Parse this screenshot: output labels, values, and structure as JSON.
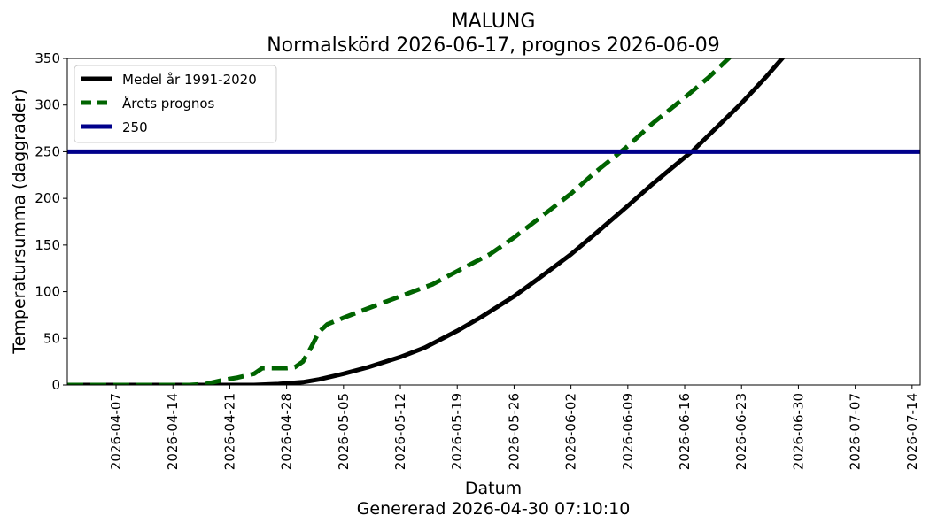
{
  "chart_data": {
    "type": "line",
    "title": "MALUNG",
    "subtitle": "Normalskörd 2026-06-17, prognos 2026-06-09",
    "xlabel": "Datum",
    "footer": "Genererad 2026-04-30 07:10:10",
    "ylabel": "Temperatursumma (daggrader)",
    "xlim": [
      "2026-04-01",
      "2026-07-15"
    ],
    "ylim": [
      0,
      350
    ],
    "yticks": [
      0,
      50,
      100,
      150,
      200,
      250,
      300,
      350
    ],
    "xticks": [
      "2026-04-07",
      "2026-04-14",
      "2026-04-21",
      "2026-04-28",
      "2026-05-05",
      "2026-05-12",
      "2026-05-19",
      "2026-05-26",
      "2026-06-02",
      "2026-06-09",
      "2026-06-16",
      "2026-06-23",
      "2026-06-30",
      "2026-07-07",
      "2026-07-14"
    ],
    "grid": false,
    "legend_position": "top-left",
    "series": [
      {
        "name": "Medel år 1991-2020",
        "color": "#000000",
        "style": "solid",
        "points": [
          [
            "2026-04-01",
            0
          ],
          [
            "2026-04-20",
            0
          ],
          [
            "2026-04-24",
            0
          ],
          [
            "2026-04-27",
            1
          ],
          [
            "2026-04-30",
            3
          ],
          [
            "2026-05-02",
            6
          ],
          [
            "2026-05-05",
            12
          ],
          [
            "2026-05-08",
            19
          ],
          [
            "2026-05-12",
            30
          ],
          [
            "2026-05-15",
            40
          ],
          [
            "2026-05-19",
            58
          ],
          [
            "2026-05-22",
            73
          ],
          [
            "2026-05-26",
            95
          ],
          [
            "2026-05-29",
            114
          ],
          [
            "2026-06-02",
            140
          ],
          [
            "2026-06-05",
            162
          ],
          [
            "2026-06-09",
            192
          ],
          [
            "2026-06-12",
            215
          ],
          [
            "2026-06-16",
            244
          ],
          [
            "2026-06-17",
            251
          ],
          [
            "2026-06-19",
            268
          ],
          [
            "2026-06-23",
            302
          ],
          [
            "2026-06-26",
            330
          ],
          [
            "2026-06-28",
            350
          ],
          [
            "2026-06-29",
            360
          ]
        ]
      },
      {
        "name": "Årets prognos",
        "color": "#006400",
        "style": "dashed",
        "points": [
          [
            "2026-04-01",
            0
          ],
          [
            "2026-04-16",
            0
          ],
          [
            "2026-04-18",
            1
          ],
          [
            "2026-04-20",
            5
          ],
          [
            "2026-04-22",
            8
          ],
          [
            "2026-04-24",
            12
          ],
          [
            "2026-04-25",
            18
          ],
          [
            "2026-04-28",
            18
          ],
          [
            "2026-04-29",
            19
          ],
          [
            "2026-04-30",
            25
          ],
          [
            "2026-05-01",
            40
          ],
          [
            "2026-05-02",
            57
          ],
          [
            "2026-05-03",
            65
          ],
          [
            "2026-05-05",
            72
          ],
          [
            "2026-05-08",
            82
          ],
          [
            "2026-05-12",
            95
          ],
          [
            "2026-05-16",
            108
          ],
          [
            "2026-05-19",
            122
          ],
          [
            "2026-05-23",
            140
          ],
          [
            "2026-05-26",
            158
          ],
          [
            "2026-05-29",
            178
          ],
          [
            "2026-06-02",
            205
          ],
          [
            "2026-06-05",
            228
          ],
          [
            "2026-06-09",
            256
          ],
          [
            "2026-06-12",
            280
          ],
          [
            "2026-06-16",
            308
          ],
          [
            "2026-06-19",
            330
          ],
          [
            "2026-06-22",
            355
          ]
        ]
      },
      {
        "name": "250",
        "color": "#00008b",
        "style": "solid",
        "points": [
          [
            "2026-04-01",
            250
          ],
          [
            "2026-07-15",
            250
          ]
        ]
      }
    ]
  }
}
